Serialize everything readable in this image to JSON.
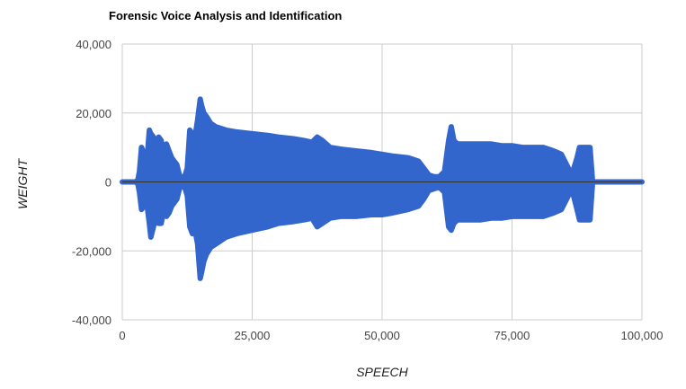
{
  "chart_data": {
    "type": "area",
    "title": "Forensic Voice Analysis and Identification",
    "xlabel": "SPEECH",
    "ylabel": "WEIGHT",
    "xlim": [
      0,
      100000
    ],
    "ylim": [
      -40000,
      40000
    ],
    "x_ticks": [
      0,
      25000,
      50000,
      75000,
      100000
    ],
    "x_tick_labels": [
      "0",
      "25,000",
      "50,000",
      "75,000",
      "100,000"
    ],
    "y_ticks": [
      40000,
      20000,
      0,
      -20000,
      -40000
    ],
    "y_tick_labels": [
      "40,000",
      "20,000",
      "0",
      "-20,000",
      "-40,000"
    ],
    "grid": true,
    "legend": "none",
    "series_color": "#3366cc",
    "baseline_color": "#333333",
    "series": [
      {
        "x": [
          0,
          2500,
          3000,
          3300,
          3700,
          4200,
          4800,
          5200,
          5500,
          6000,
          6500,
          7000,
          7500,
          8000,
          8500,
          9000,
          9500,
          10000,
          10500,
          11000,
          11500,
          12000,
          12500,
          13000,
          13500,
          14000,
          14500,
          15000,
          15300,
          15700,
          16200,
          17000,
          18000,
          19000,
          20000,
          22000,
          25000,
          28000,
          30000,
          33000,
          35000,
          36500,
          37500,
          38500,
          40000,
          42000,
          45000,
          48000,
          50000,
          52000,
          55000,
          57000,
          58000,
          59000,
          60000,
          61000,
          62000,
          62800,
          63300,
          63800,
          64500,
          65500,
          67000,
          69000,
          71000,
          73000,
          75000,
          77000,
          79000,
          81000,
          83000,
          84500,
          85500,
          86500,
          87500,
          88000,
          88500,
          89000,
          89500,
          90000,
          90500,
          100000
        ],
        "max": [
          0,
          0,
          500,
          3000,
          10000,
          8000,
          7000,
          15000,
          14000,
          13000,
          9000,
          13000,
          12000,
          8000,
          11000,
          9000,
          7000,
          6000,
          5000,
          2000,
          1000,
          1500,
          4000,
          15000,
          14000,
          13000,
          18000,
          24000,
          22000,
          20000,
          19000,
          17000,
          16000,
          15500,
          15000,
          14500,
          14000,
          13500,
          13000,
          12500,
          12000,
          11500,
          13000,
          12000,
          10000,
          9500,
          9000,
          8500,
          8000,
          7500,
          7000,
          6000,
          4000,
          2000,
          1500,
          1500,
          3000,
          12000,
          16000,
          12000,
          11000,
          11000,
          11000,
          11000,
          11000,
          10500,
          10500,
          10000,
          10000,
          10000,
          9000,
          8000,
          5000,
          2000,
          7000,
          10000,
          10000,
          10000,
          10000,
          10000,
          0,
          0
        ],
        "min": [
          0,
          0,
          -500,
          -3000,
          -8000,
          -7000,
          -7000,
          -12000,
          -16000,
          -13000,
          -9000,
          -12000,
          -12000,
          -8000,
          -10000,
          -9000,
          -7000,
          -6000,
          -5000,
          -2000,
          -1000,
          -1500,
          -4000,
          -13000,
          -15000,
          -14000,
          -18000,
          -28000,
          -26000,
          -23000,
          -21000,
          -19000,
          -18000,
          -17000,
          -16000,
          -15000,
          -14000,
          -13000,
          -12000,
          -11500,
          -11000,
          -10500,
          -13000,
          -12000,
          -10500,
          -10000,
          -10000,
          -9500,
          -9500,
          -9000,
          -8000,
          -7000,
          -5000,
          -2500,
          -2000,
          -1500,
          -3000,
          -13000,
          -14000,
          -12000,
          -11000,
          -11000,
          -11000,
          -11000,
          -10500,
          -10500,
          -10000,
          -10000,
          -10000,
          -10000,
          -9000,
          -8000,
          -5000,
          -2000,
          -8000,
          -11000,
          -11000,
          -11000,
          -11000,
          -11000,
          0,
          0
        ]
      }
    ]
  }
}
